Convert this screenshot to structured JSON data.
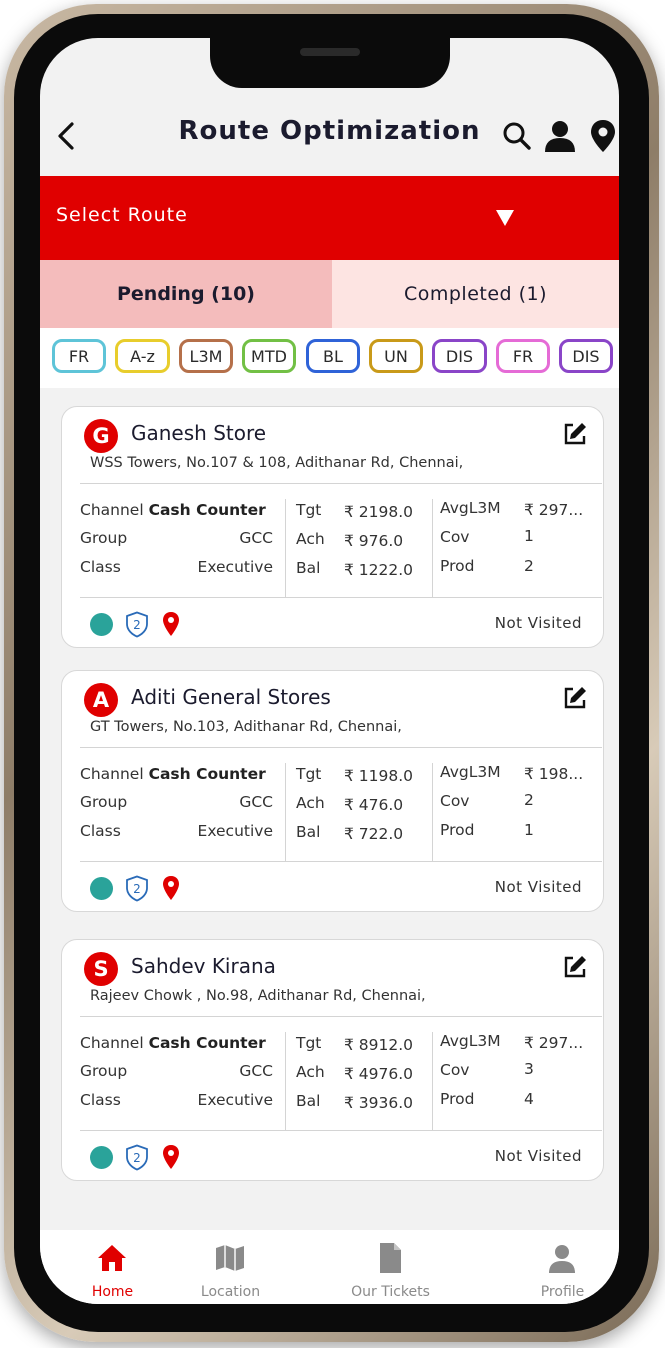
{
  "header": {
    "title": "Route Optimization",
    "icons": [
      "back-arrow-icon",
      "search-icon",
      "user-icon",
      "location-pin-icon"
    ]
  },
  "route_select": {
    "label": "Select Route",
    "icon": "dropdown-caret-icon"
  },
  "tabs": [
    {
      "label": "Pending (10)",
      "active": true
    },
    {
      "label": "Completed (1)",
      "active": false
    }
  ],
  "filters": [
    {
      "label": "FR",
      "color": "#5ec4d8"
    },
    {
      "label": "A-z",
      "color": "#e8cd2c"
    },
    {
      "label": "L3M",
      "color": "#b5704a"
    },
    {
      "label": "MTD",
      "color": "#72c045"
    },
    {
      "label": "BL",
      "color": "#2f63d8"
    },
    {
      "label": "UN",
      "color": "#c99a19"
    },
    {
      "label": "DIS",
      "color": "#8a45c8"
    },
    {
      "label": "FR",
      "color": "#e56bd6"
    },
    {
      "label": "DIS",
      "color": "#8a45c8"
    }
  ],
  "stores": [
    {
      "initial": "G",
      "name": "Ganesh Store",
      "address": "WSS Towers, No.107 & 108, Adithanar Rd, Chennai,",
      "channel_label": "Channel",
      "channel_value": "Cash  Counter",
      "group_label": "Group",
      "group_value": "GCC",
      "class_label": "Class",
      "class_value": "Executive",
      "tgt_label": "Tgt",
      "tgt": "₹ 2198.0",
      "ach_label": "Ach",
      "ach": "₹ 976.0",
      "bal_label": "Bal",
      "bal": "₹ 1222.0",
      "avg_label": "AvgL3M",
      "avg": "₹ 297...",
      "cov_label": "Cov",
      "cov": "1",
      "prod_label": "Prod",
      "prod": "2",
      "shield_count": "2",
      "status": "Not Visited"
    },
    {
      "initial": "A",
      "name": "Aditi General Stores",
      "address": "GT Towers, No.103, Adithanar Rd, Chennai,",
      "channel_label": "Channel",
      "channel_value": "Cash  Counter",
      "group_label": "Group",
      "group_value": "GCC",
      "class_label": "Class",
      "class_value": "Executive",
      "tgt_label": "Tgt",
      "tgt": "₹ 1198.0",
      "ach_label": "Ach",
      "ach": "₹ 476.0",
      "bal_label": "Bal",
      "bal": "₹ 722.0",
      "avg_label": "AvgL3M",
      "avg": "₹ 198...",
      "cov_label": "Cov",
      "cov": "2",
      "prod_label": "Prod",
      "prod": "1",
      "shield_count": "2",
      "status": "Not Visited"
    },
    {
      "initial": "S",
      "name": "Sahdev Kirana",
      "address": "Rajeev Chowk , No.98, Adithanar Rd, Chennai,",
      "channel_label": "Channel",
      "channel_value": "Cash  Counter",
      "group_label": "Group",
      "group_value": "GCC",
      "class_label": "Class",
      "class_value": "Executive",
      "tgt_label": "Tgt",
      "tgt": "₹ 8912.0",
      "ach_label": "Ach",
      "ach": "₹ 4976.0",
      "bal_label": "Bal",
      "bal": "₹ 3936.0",
      "avg_label": "AvgL3M",
      "avg": "₹ 297...",
      "cov_label": "Cov",
      "cov": "3",
      "prod_label": "Prod",
      "prod": "4",
      "shield_count": "2",
      "status": "Not Visited"
    }
  ],
  "bottom_nav": [
    {
      "label": "Home",
      "icon": "home-icon",
      "active": true
    },
    {
      "label": "Location",
      "icon": "map-icon",
      "active": false
    },
    {
      "label": "Our Tickets",
      "icon": "ticket-icon",
      "active": false
    },
    {
      "label": "Profile",
      "icon": "profile-icon",
      "active": false
    }
  ],
  "colors": {
    "primary": "#e00000",
    "pending_tab": "#f4bcbc",
    "completed_tab": "#fde4e2",
    "status_dot": "#2aa39a",
    "nav_inactive": "#8a8a8a"
  }
}
